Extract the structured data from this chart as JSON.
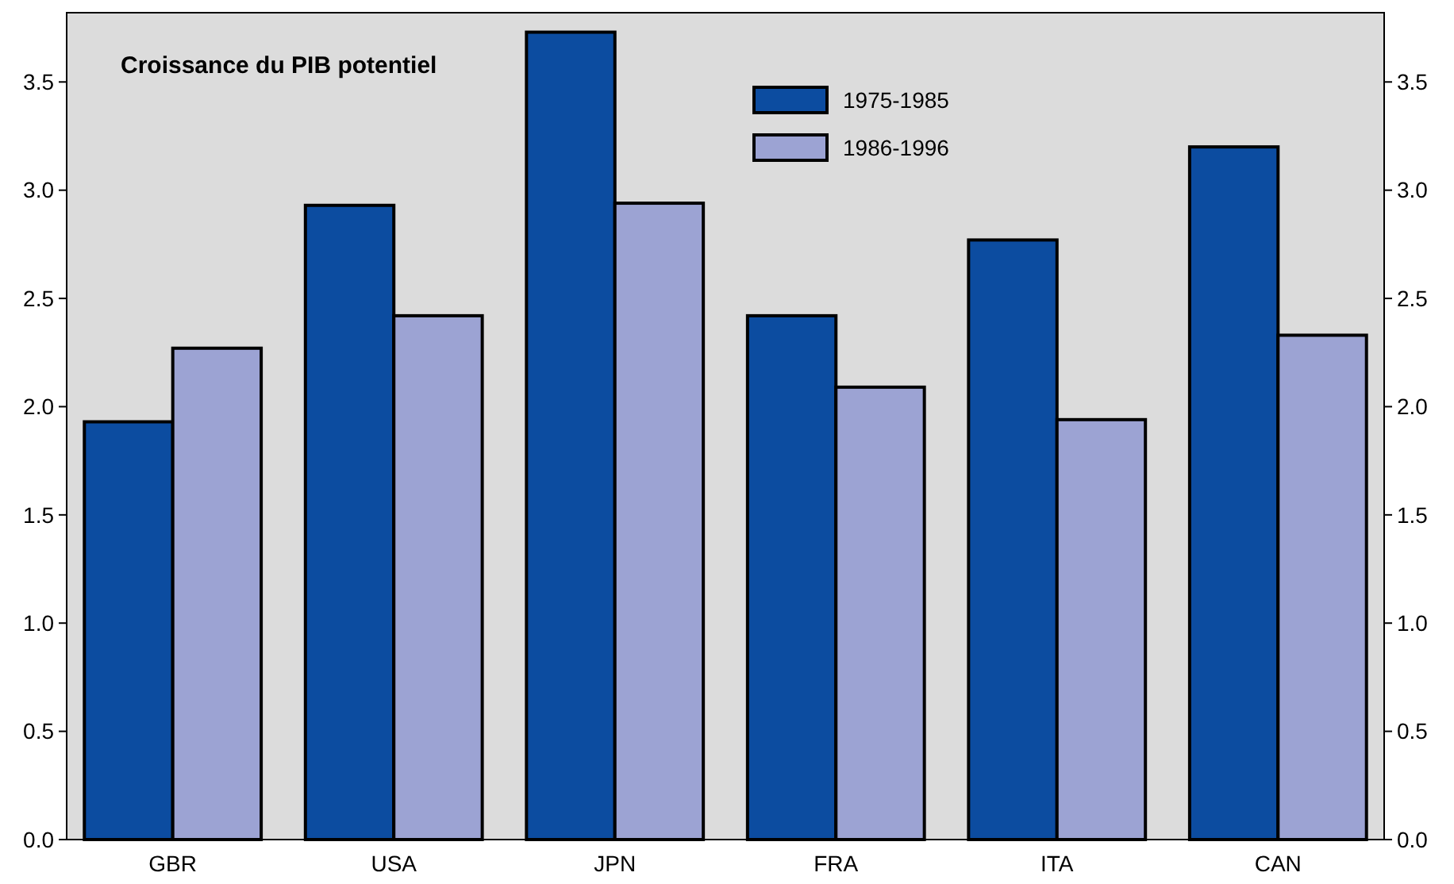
{
  "chart_data": {
    "type": "bar",
    "title": "Croissance du PIB potentiel",
    "categories": [
      "GBR",
      "USA",
      "JPN",
      "FRA",
      "ITA",
      "CAN"
    ],
    "series": [
      {
        "name": "1975-1985",
        "color": "#0c4ca0",
        "values": [
          1.93,
          2.93,
          3.73,
          2.42,
          2.77,
          3.2
        ]
      },
      {
        "name": "1986-1996",
        "color": "#9ca3d3",
        "values": [
          2.27,
          2.42,
          2.94,
          2.09,
          1.94,
          2.33
        ]
      }
    ],
    "ylim": [
      0,
      3.82
    ],
    "yticks": [
      {
        "value": 0,
        "label": "0.0"
      },
      {
        "value": 0.5,
        "label": "0.5"
      },
      {
        "value": 1,
        "label": "1.0"
      },
      {
        "value": 1.5,
        "label": "1.5"
      },
      {
        "value": 2,
        "label": "2.0"
      },
      {
        "value": 2.5,
        "label": "2.5"
      },
      {
        "value": 3,
        "label": "3.0"
      },
      {
        "value": 3.5,
        "label": "3.5"
      }
    ],
    "y2lim": [
      0,
      3.82
    ],
    "y2ticks": [
      {
        "value": 0,
        "label": "0.0"
      },
      {
        "value": 0.5,
        "label": "0.5"
      },
      {
        "value": 1,
        "label": "1.0"
      },
      {
        "value": 1.5,
        "label": "1.5"
      },
      {
        "value": 2,
        "label": "2.0"
      },
      {
        "value": 2.5,
        "label": "2.5"
      },
      {
        "value": 3,
        "label": "3.0"
      },
      {
        "value": 3.5,
        "label": "3.5"
      }
    ],
    "grid": false,
    "legend": "top"
  }
}
